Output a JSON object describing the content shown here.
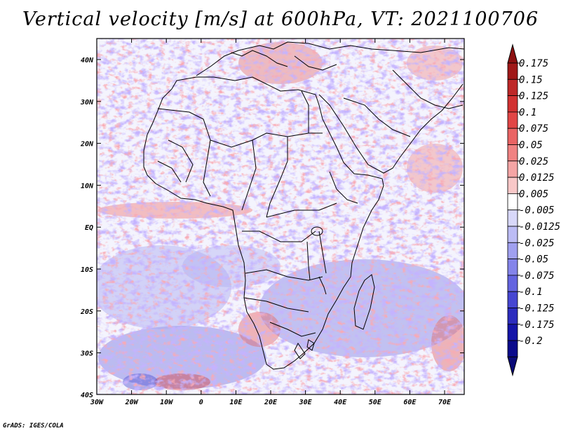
{
  "title": "Vertical velocity [m/s] at 600hPa, VT: 2021100706",
  "credit": "GrADS: IGES/COLA",
  "map": {
    "region": "Africa",
    "variable": "Vertical velocity",
    "units": "m/s",
    "level": "600hPa",
    "valid_time": "2021100706",
    "lon_labels": [
      "30W",
      "20W",
      "10W",
      "0",
      "10E",
      "20E",
      "30E",
      "40E",
      "50E",
      "60E",
      "70E"
    ],
    "lat_labels": [
      "40N",
      "30N",
      "20N",
      "10N",
      "EQ",
      "10S",
      "20S",
      "30S",
      "40S"
    ]
  },
  "colorbar": {
    "labels": [
      "0.175",
      "0.15",
      "0.125",
      "0.1",
      "0.075",
      "0.05",
      "0.025",
      "0.0125",
      "0.005",
      "-0.005",
      "-0.0125",
      "-0.025",
      "-0.05",
      "-0.075",
      "-0.1",
      "-0.125",
      "-0.175",
      "-0.2"
    ],
    "colors": [
      "#a01818",
      "#be2828",
      "#d23232",
      "#e24646",
      "#ea6464",
      "#f08282",
      "#f5a5a5",
      "#f9c8c8",
      "#ffffff",
      "#d8d8fa",
      "#bcbcf5",
      "#a0a0f0",
      "#8484ea",
      "#6464e0",
      "#4646d2",
      "#2c2cbe",
      "#1414a8",
      "#0a0a8c"
    ],
    "top_arrow_color": "#8c1010",
    "bottom_arrow_color": "#0a0a78"
  }
}
